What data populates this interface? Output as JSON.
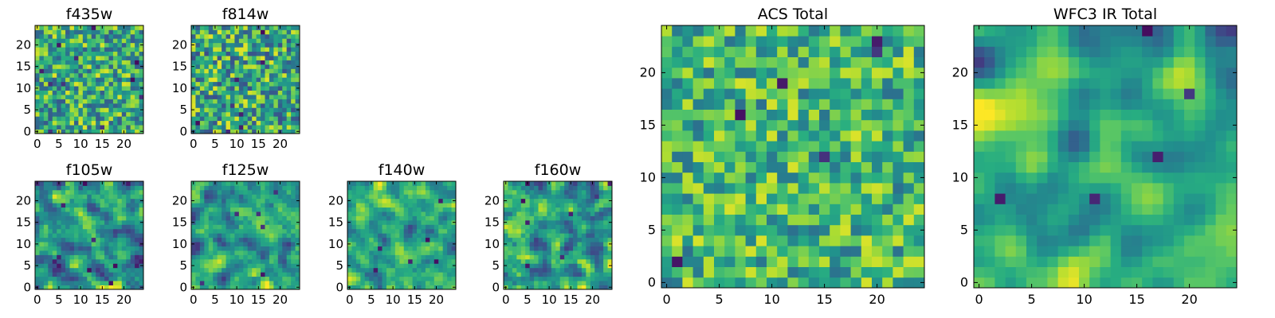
{
  "figure": {
    "colormap": "viridis",
    "colors": {
      "low": "#440154",
      "mid": "#21918c",
      "high": "#fde725"
    }
  },
  "chart_data": [
    {
      "id": "f435w",
      "type": "heatmap",
      "title": "f435w",
      "grid_size": 25,
      "seed": 435,
      "smooth": 0,
      "base": 0.62,
      "spread": 0.42,
      "dark_spots": 12,
      "xticks": [
        0,
        5,
        10,
        15,
        20
      ],
      "yticks": [
        0,
        5,
        10,
        15,
        20
      ],
      "xlim": [
        -0.5,
        24.5
      ],
      "ylim": [
        -0.5,
        24.5
      ],
      "grid": false,
      "xlabel": "",
      "ylabel": ""
    },
    {
      "id": "f814w",
      "type": "heatmap",
      "title": "f814w",
      "grid_size": 25,
      "seed": 814,
      "smooth": 0,
      "base": 0.6,
      "spread": 0.45,
      "dark_spots": 8,
      "xticks": [
        0,
        5,
        10,
        15,
        20
      ],
      "yticks": [
        0,
        5,
        10,
        15,
        20
      ],
      "xlim": [
        -0.5,
        24.5
      ],
      "ylim": [
        -0.5,
        24.5
      ],
      "grid": false,
      "xlabel": "",
      "ylabel": ""
    },
    {
      "id": "f105w",
      "type": "heatmap",
      "title": "f105w",
      "grid_size": 25,
      "seed": 105,
      "smooth": 1,
      "base": 0.55,
      "spread": 0.6,
      "dark_spots": 10,
      "xticks": [
        0,
        5,
        10,
        15,
        20
      ],
      "yticks": [
        0,
        5,
        10,
        15,
        20
      ],
      "xlim": [
        -0.5,
        24.5
      ],
      "ylim": [
        -0.5,
        24.5
      ],
      "grid": false,
      "xlabel": "",
      "ylabel": ""
    },
    {
      "id": "f125w",
      "type": "heatmap",
      "title": "f125w",
      "grid_size": 25,
      "seed": 125,
      "smooth": 1,
      "base": 0.6,
      "spread": 0.55,
      "dark_spots": 6,
      "xticks": [
        0,
        5,
        10,
        15,
        20
      ],
      "yticks": [
        0,
        5,
        10,
        15,
        20
      ],
      "xlim": [
        -0.5,
        24.5
      ],
      "ylim": [
        -0.5,
        24.5
      ],
      "grid": false,
      "xlabel": "",
      "ylabel": ""
    },
    {
      "id": "f140w",
      "type": "heatmap",
      "title": "f140w",
      "grid_size": 25,
      "seed": 140,
      "smooth": 1,
      "base": 0.62,
      "spread": 0.5,
      "dark_spots": 6,
      "xticks": [
        0,
        5,
        10,
        15,
        20
      ],
      "yticks": [
        0,
        5,
        10,
        15,
        20
      ],
      "xlim": [
        -0.5,
        24.5
      ],
      "ylim": [
        -0.5,
        24.5
      ],
      "grid": false,
      "xlabel": "",
      "ylabel": ""
    },
    {
      "id": "f160w",
      "type": "heatmap",
      "title": "f160w",
      "grid_size": 25,
      "seed": 160,
      "smooth": 1,
      "base": 0.62,
      "spread": 0.55,
      "dark_spots": 8,
      "xticks": [
        0,
        5,
        10,
        15,
        20
      ],
      "yticks": [
        0,
        5,
        10,
        15,
        20
      ],
      "xlim": [
        -0.5,
        24.5
      ],
      "ylim": [
        -0.5,
        24.5
      ],
      "grid": false,
      "xlabel": "",
      "ylabel": ""
    },
    {
      "id": "acs-total",
      "type": "heatmap",
      "title": "ACS Total",
      "grid_size": 25,
      "seed": 7,
      "smooth": 0,
      "base": 0.66,
      "spread": 0.36,
      "dark_spots": 6,
      "xticks": [
        0,
        5,
        10,
        15,
        20
      ],
      "yticks": [
        0,
        5,
        10,
        15,
        20
      ],
      "xlim": [
        -0.5,
        24.5
      ],
      "ylim": [
        -0.5,
        24.5
      ],
      "grid": false,
      "xlabel": "",
      "ylabel": ""
    },
    {
      "id": "wfc3-ir-total",
      "type": "heatmap",
      "title": "WFC3 IR Total",
      "grid_size": 25,
      "seed": 33,
      "smooth": 2,
      "base": 0.62,
      "spread": 0.55,
      "dark_spots": 5,
      "xticks": [
        0,
        5,
        10,
        15,
        20
      ],
      "yticks": [
        0,
        5,
        10,
        15,
        20
      ],
      "xlim": [
        -0.5,
        24.5
      ],
      "ylim": [
        -0.5,
        24.5
      ],
      "grid": false,
      "xlabel": "",
      "ylabel": ""
    }
  ]
}
